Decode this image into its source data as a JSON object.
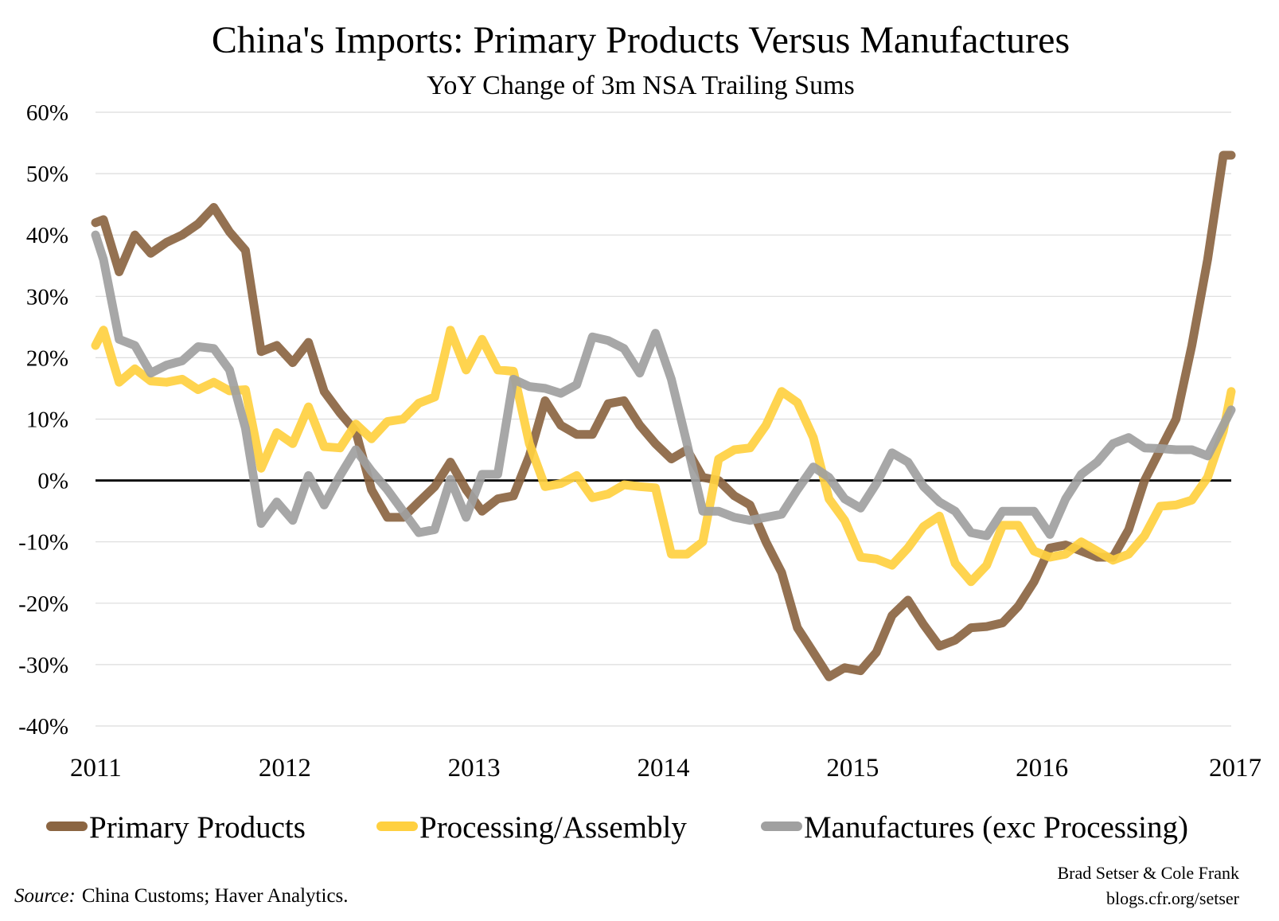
{
  "chart_data": {
    "type": "line",
    "title": "China's Imports: Primary Products Versus Manufactures",
    "subtitle": "YoY Change of 3m NSA Trailing Sums",
    "xlabel": "",
    "ylabel": "",
    "y_unit": "%",
    "ylim": [
      -40,
      60
    ],
    "y_ticks": [
      "60%",
      "50%",
      "40%",
      "30%",
      "20%",
      "10%",
      "0%",
      "-10%",
      "-20%",
      "-30%",
      "-40%"
    ],
    "xlim": [
      2011,
      2017
    ],
    "x_ticks": [
      "2011",
      "2012",
      "2013",
      "2014",
      "2015",
      "2016",
      "2017"
    ],
    "x_tick_values": [
      2011,
      2012,
      2013,
      2014,
      2015,
      2016,
      2017
    ],
    "grid": true,
    "zero_line": true,
    "legend_position": "bottom",
    "series": [
      {
        "name": "Primary Products",
        "color": "#8B6542",
        "x": [
          2011.0,
          2011.042,
          2011.125,
          2011.208,
          2011.292,
          2011.375,
          2011.458,
          2011.542,
          2011.625,
          2011.708,
          2011.792,
          2011.875,
          2011.958,
          2012.042,
          2012.125,
          2012.208,
          2012.292,
          2012.375,
          2012.458,
          2012.542,
          2012.625,
          2012.708,
          2012.792,
          2012.875,
          2012.958,
          2013.042,
          2013.125,
          2013.208,
          2013.292,
          2013.375,
          2013.458,
          2013.542,
          2013.625,
          2013.708,
          2013.792,
          2013.875,
          2013.958,
          2014.042,
          2014.125,
          2014.208,
          2014.292,
          2014.375,
          2014.458,
          2014.542,
          2014.625,
          2014.708,
          2014.792,
          2014.875,
          2014.958,
          2015.042,
          2015.125,
          2015.208,
          2015.292,
          2015.375,
          2015.458,
          2015.542,
          2015.625,
          2015.708,
          2015.792,
          2015.875,
          2015.958,
          2016.042,
          2016.125,
          2016.208,
          2016.292,
          2016.375,
          2016.458,
          2016.542,
          2016.625,
          2016.708,
          2016.792,
          2016.875,
          2016.958,
          2017.0
        ],
        "values": [
          42,
          42.5,
          34,
          40,
          37,
          38.8,
          40,
          41.8,
          44.5,
          40.5,
          37.5,
          21,
          22,
          19.2,
          22.5,
          14.5,
          11,
          8,
          -1.5,
          -6,
          -6,
          -3.5,
          -1,
          3,
          -1.5,
          -5,
          -3,
          -2.5,
          4,
          13,
          9,
          7.5,
          7.5,
          12.5,
          13,
          9,
          6,
          3.5,
          5,
          0.5,
          0,
          -2.5,
          -4,
          -10,
          -15,
          -24,
          -28,
          -32,
          -30.5,
          -31,
          -28,
          -22,
          -19.5,
          -23.5,
          -27,
          -26,
          -24,
          -23.8,
          -23.2,
          -20.5,
          -16.5,
          -11,
          -10.5,
          -11.5,
          -12.5,
          -12.5,
          -8,
          0,
          5,
          10,
          22,
          36,
          53,
          53
        ]
      },
      {
        "name": "Processing/Assembly",
        "color": "#FFD040",
        "x": [
          2011.0,
          2011.042,
          2011.125,
          2011.208,
          2011.292,
          2011.375,
          2011.458,
          2011.542,
          2011.625,
          2011.708,
          2011.792,
          2011.875,
          2011.958,
          2012.042,
          2012.125,
          2012.208,
          2012.292,
          2012.375,
          2012.458,
          2012.542,
          2012.625,
          2012.708,
          2012.792,
          2012.875,
          2012.958,
          2013.042,
          2013.125,
          2013.208,
          2013.292,
          2013.375,
          2013.458,
          2013.542,
          2013.625,
          2013.708,
          2013.792,
          2013.875,
          2013.958,
          2014.042,
          2014.125,
          2014.208,
          2014.292,
          2014.375,
          2014.458,
          2014.542,
          2014.625,
          2014.708,
          2014.792,
          2014.875,
          2014.958,
          2015.042,
          2015.125,
          2015.208,
          2015.292,
          2015.375,
          2015.458,
          2015.542,
          2015.625,
          2015.708,
          2015.792,
          2015.875,
          2015.958,
          2016.042,
          2016.125,
          2016.208,
          2016.292,
          2016.375,
          2016.458,
          2016.542,
          2016.625,
          2016.708,
          2016.792,
          2016.875,
          2016.958,
          2017.0
        ],
        "values": [
          22,
          24.5,
          16,
          18.2,
          16.2,
          16,
          16.5,
          14.8,
          16,
          14.6,
          14.8,
          2,
          7.8,
          6,
          12,
          5.5,
          5.3,
          9.2,
          6.8,
          9.6,
          10,
          12.6,
          13.6,
          24.5,
          18,
          23,
          18,
          17.8,
          6,
          -1,
          -0.5,
          0.8,
          -2.8,
          -2.2,
          -0.7,
          -1,
          -1.2,
          -12,
          -12,
          -10,
          3.5,
          5,
          5.3,
          9,
          14.5,
          12.7,
          7,
          -3,
          -6.5,
          -12.5,
          -12.8,
          -13.8,
          -11,
          -7.5,
          -5.8,
          -13.5,
          -16.5,
          -13.8,
          -7.3,
          -7.3,
          -11.5,
          -12.5,
          -12,
          -10,
          -11.5,
          -13,
          -12,
          -9,
          -4.2,
          -4,
          -3.2,
          0.5,
          8,
          14.5
        ]
      },
      {
        "name": "Manufactures (exc Processing)",
        "color": "#A0A0A0",
        "x": [
          2011.0,
          2011.042,
          2011.125,
          2011.208,
          2011.292,
          2011.375,
          2011.458,
          2011.542,
          2011.625,
          2011.708,
          2011.792,
          2011.875,
          2011.958,
          2012.042,
          2012.125,
          2012.208,
          2012.292,
          2012.375,
          2012.458,
          2012.542,
          2012.625,
          2012.708,
          2012.792,
          2012.875,
          2012.958,
          2013.042,
          2013.125,
          2013.208,
          2013.292,
          2013.375,
          2013.458,
          2013.542,
          2013.625,
          2013.708,
          2013.792,
          2013.875,
          2013.958,
          2014.042,
          2014.125,
          2014.208,
          2014.292,
          2014.375,
          2014.458,
          2014.542,
          2014.625,
          2014.708,
          2014.792,
          2014.875,
          2014.958,
          2015.042,
          2015.125,
          2015.208,
          2015.292,
          2015.375,
          2015.458,
          2015.542,
          2015.625,
          2015.708,
          2015.792,
          2015.875,
          2015.958,
          2016.042,
          2016.125,
          2016.208,
          2016.292,
          2016.375,
          2016.458,
          2016.542,
          2016.625,
          2016.708,
          2016.792,
          2016.875,
          2016.958,
          2017.0
        ],
        "values": [
          40,
          36,
          23,
          22,
          17.5,
          18.8,
          19.5,
          21.8,
          21.5,
          18,
          8.5,
          -7,
          -3.5,
          -6.5,
          0.8,
          -4,
          0.8,
          5,
          1.5,
          -1.5,
          -5,
          -8.5,
          -8,
          0.2,
          -6,
          1,
          1,
          16.5,
          15.3,
          15,
          14.2,
          15.6,
          23.4,
          22.8,
          21.5,
          17.5,
          24,
          16.5,
          6,
          -5,
          -5,
          -6,
          -6.5,
          -6,
          -5.5,
          -1.5,
          2.2,
          0.5,
          -3,
          -4.5,
          -0.5,
          4.5,
          3,
          -1,
          -3.5,
          -5,
          -8.5,
          -9,
          -5,
          -5,
          -5,
          -8.8,
          -3,
          1,
          3,
          6,
          7,
          5.3,
          5.2,
          5,
          5,
          4,
          9,
          11.5
        ]
      }
    ],
    "credit_lines": [
      "Brad Setser & Cole Frank",
      "blogs.cfr.org/setser"
    ],
    "source_prefix": "Source:",
    "source_text": "China Customs; Haver Analytics."
  }
}
